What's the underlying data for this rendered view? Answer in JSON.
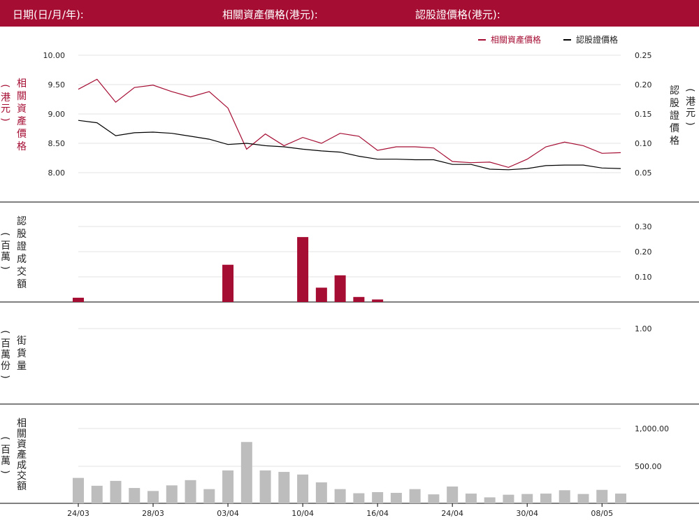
{
  "header": {
    "date_label": "日期(日/月/年):",
    "underlying_label": "相關資產價格(港元):",
    "warrant_label": "認股證價格(港元):"
  },
  "colors": {
    "accent": "#a50d33",
    "line_black": "#000000",
    "bar_red": "#a50d33",
    "bar_grey": "#bdbdbd"
  },
  "chart_data": [
    {
      "type": "line",
      "legend": [
        "相關資產價格",
        "認股證價格"
      ],
      "legend_position": "top-right",
      "left_axis": {
        "unit": "(港元)",
        "label": "相關資產價格",
        "ticks": [
          "10.00",
          "9.50",
          "9.00",
          "8.50",
          "8.00"
        ],
        "ylim": [
          8.0,
          10.0
        ]
      },
      "right_axis": {
        "unit": "(港元)",
        "label": "認股證價格",
        "ticks": [
          "0.25",
          "0.20",
          "0.15",
          "0.10",
          "0.05"
        ],
        "ylim": [
          0.05,
          0.25
        ]
      },
      "x_ticks": [
        "24/03",
        "28/03",
        "03/04",
        "10/04",
        "16/04",
        "24/04",
        "30/04",
        "08/05"
      ],
      "x_tick_index": [
        0,
        4,
        8,
        12,
        16,
        20,
        24,
        28
      ],
      "series": [
        {
          "name": "相關資產價格",
          "axis": "left",
          "color": "#a50d33",
          "values": [
            9.42,
            9.59,
            9.2,
            9.45,
            9.49,
            9.38,
            9.29,
            9.38,
            9.1,
            8.4,
            8.66,
            8.46,
            8.6,
            8.5,
            8.67,
            8.62,
            8.38,
            8.44,
            8.44,
            8.42,
            8.19,
            8.17,
            8.18,
            8.09,
            8.23,
            8.44,
            8.52,
            8.46,
            8.33,
            8.34
          ]
        },
        {
          "name": "認股證價格",
          "axis": "right",
          "color": "#000000",
          "values": [
            0.139,
            0.135,
            0.113,
            0.118,
            0.119,
            0.117,
            0.112,
            0.107,
            0.098,
            0.1,
            0.096,
            0.094,
            0.09,
            0.087,
            0.085,
            0.078,
            0.073,
            0.073,
            0.072,
            0.072,
            0.064,
            0.064,
            0.056,
            0.055,
            0.057,
            0.062,
            0.063,
            0.063,
            0.058,
            0.057
          ]
        }
      ]
    },
    {
      "type": "bar",
      "label": "認股證成交額",
      "unit": "(百萬)",
      "ticks": [
        "0.30",
        "0.20",
        "0.10"
      ],
      "ylim": [
        0,
        0.3
      ],
      "values": [
        0.017,
        0,
        0,
        0,
        0,
        0,
        0,
        0,
        0.148,
        0,
        0,
        0,
        0.258,
        0.057,
        0.106,
        0.02,
        0.01,
        0,
        0,
        0,
        0,
        0,
        0,
        0,
        0,
        0,
        0,
        0,
        0,
        0
      ]
    },
    {
      "type": "bar",
      "label": "街貨量",
      "unit": "(百萬份)",
      "ticks": [
        "1.00"
      ],
      "ylim": [
        0,
        1.0
      ],
      "values": []
    },
    {
      "type": "bar",
      "label": "相關資產成交額",
      "unit": "(百萬)",
      "ticks": [
        "1,000.00",
        "500.00"
      ],
      "ylim": [
        0,
        1000
      ],
      "values": [
        340,
        235,
        300,
        205,
        165,
        240,
        310,
        190,
        440,
        820,
        440,
        420,
        385,
        280,
        190,
        135,
        150,
        140,
        190,
        120,
        225,
        130,
        80,
        115,
        125,
        130,
        175,
        125,
        180,
        130
      ]
    }
  ]
}
